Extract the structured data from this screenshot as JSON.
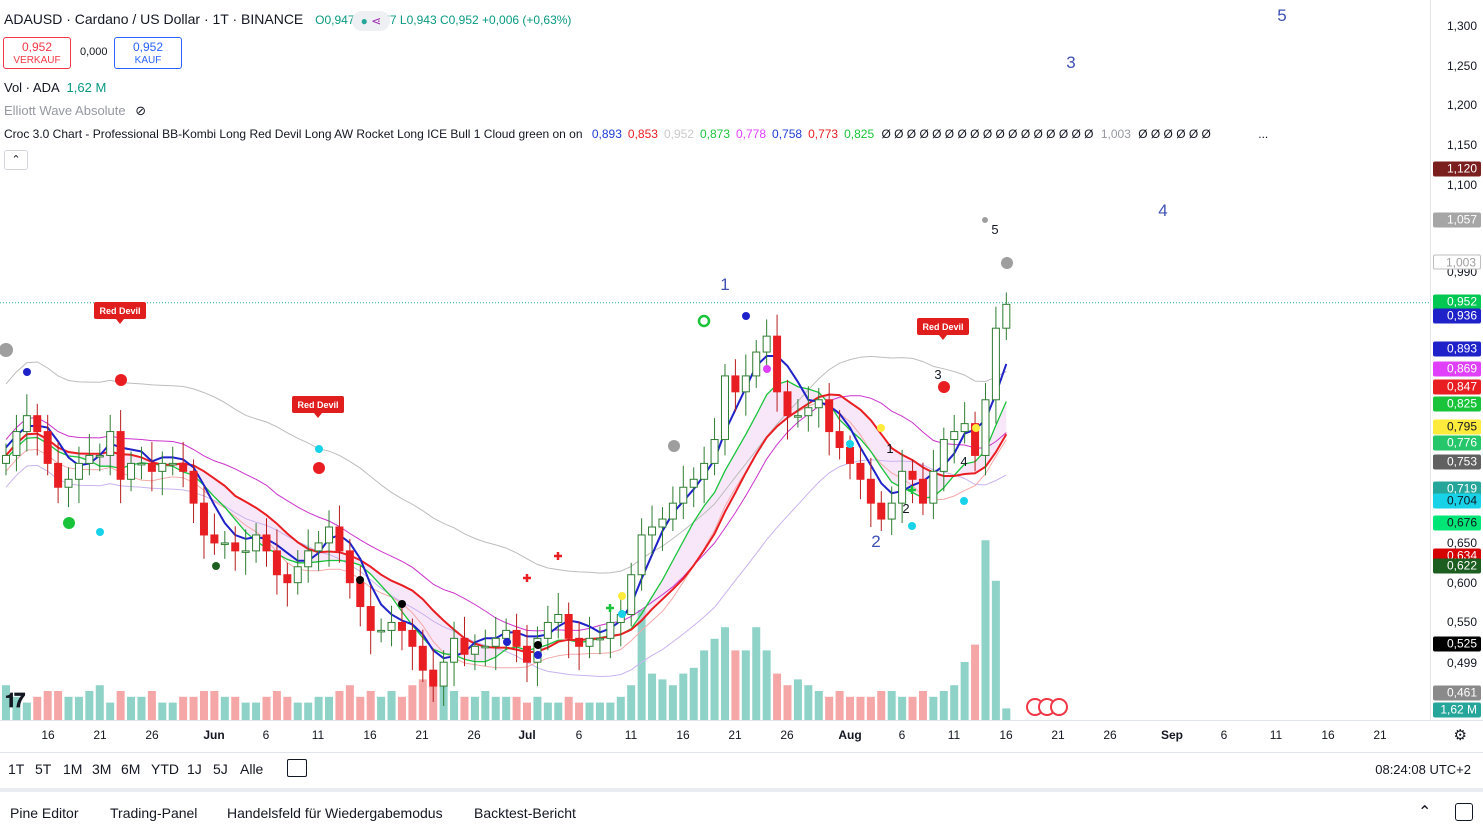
{
  "symbol": {
    "title": "ADAUSD · Cardano / US Dollar · 1T · BINANCE",
    "open": "O0,947",
    "high": "H0,977",
    "low": "L0,943",
    "close": "C0,952",
    "change": "+0,006 (+0,63%)"
  },
  "trade": {
    "sell_price": "0,952",
    "sell_label": "VERKAUF",
    "spread": "0,000",
    "buy_price": "0,952",
    "buy_label": "KAUF"
  },
  "indicators": {
    "volume": "Vol · ADA",
    "volume_value": "1,62 M",
    "elliott": "Elliott Wave Absolute",
    "croc_name": "Croc 3.0 Chart - Professional BB-Kombi Long Red Devil Long AW Rocket Long ICE Bull 1 Cloud green on on",
    "croc_values": [
      {
        "v": "0,893",
        "c": "#1e3cd6"
      },
      {
        "v": "0,853",
        "c": "#e91e23"
      },
      {
        "v": "0,952",
        "c": "#c9c9c9"
      },
      {
        "v": "0,873",
        "c": "#19c43b"
      },
      {
        "v": "0,778",
        "c": "#e040fb"
      },
      {
        "v": "0,758",
        "c": "#1e3cd6"
      },
      {
        "v": "0,773",
        "c": "#e91e23"
      },
      {
        "v": "0,825",
        "c": "#19c43b"
      }
    ],
    "croc_zeros_a": "Ø Ø Ø Ø Ø Ø Ø Ø Ø Ø Ø Ø Ø Ø Ø Ø Ø",
    "croc_1003": "1,003",
    "croc_zeros_b": "Ø Ø Ø Ø Ø Ø",
    "more": "..."
  },
  "price_axis": [
    "1,300",
    "1,250",
    "1,200",
    "1,150",
    "1,100",
    "0,990",
    "0,650",
    "0,600",
    "0,550",
    "0,499"
  ],
  "price_tags": [
    {
      "label": "1,120",
      "bg": "#7b1e1e"
    },
    {
      "label": "1,057",
      "bg": "#a6a6a6"
    },
    {
      "label": "1,003",
      "bg": "#ffffff",
      "fg": "#9e9e9e"
    },
    {
      "label": "0,952",
      "bg": "#00c853"
    },
    {
      "label": "0,936",
      "bg": "#1e22c8"
    },
    {
      "label": "0,893",
      "bg": "#1e22c8"
    },
    {
      "label": "0,869",
      "bg": "#e040fb"
    },
    {
      "label": "0,847",
      "bg": "#e91e23"
    },
    {
      "label": "0,825",
      "bg": "#19c43b"
    },
    {
      "label": "0,795",
      "bg": "#ffeb3b",
      "fg": "#131722"
    },
    {
      "label": "0,776",
      "bg": "#26c66a"
    },
    {
      "label": "0,753",
      "bg": "#616161"
    },
    {
      "label": "0,719",
      "bg": "#26a69a"
    },
    {
      "label": "0,704",
      "bg": "#18d3e8",
      "fg": "#131722"
    },
    {
      "label": "0,676",
      "bg": "#00e676",
      "fg": "#131722"
    },
    {
      "label": "0,634",
      "bg": "#d50000"
    },
    {
      "label": "0,622",
      "bg": "#1b5e20"
    },
    {
      "label": "0,525",
      "bg": "#000000"
    },
    {
      "label": "0,461",
      "bg": "#8a8a8a"
    },
    {
      "label": "1,62 M",
      "bg": "#26a69a"
    }
  ],
  "time_axis": [
    "16",
    "21",
    "26",
    "Jun",
    "6",
    "11",
    "16",
    "21",
    "26",
    "Jul",
    "6",
    "11",
    "16",
    "21",
    "26",
    "Aug",
    "6",
    "11",
    "16",
    "21",
    "26",
    "Sep",
    "6",
    "11",
    "16",
    "21"
  ],
  "wave_labels": [
    "1",
    "2",
    "3",
    "4",
    "5"
  ],
  "wave_small": [
    "1",
    "2",
    "3",
    "4",
    "5"
  ],
  "red_devil": "Red Devil",
  "range_buttons": [
    "1T",
    "5T",
    "1M",
    "3M",
    "6M",
    "YTD",
    "1J",
    "5J",
    "Alle"
  ],
  "clock": "08:24:08 UTC+2",
  "panels": [
    "Pine Editor",
    "Trading-Panel",
    "Handelsfeld für Wiedergabemodus",
    "Backtest-Bericht"
  ],
  "chart_data": {
    "type": "candlestick",
    "ylim": [
      0.46,
      1.32
    ],
    "x": [
      "May 11",
      "May 12",
      "May 13",
      "May 14",
      "May 15",
      "May 16",
      "May 17",
      "May 18",
      "May 19",
      "May 20",
      "May 21",
      "May 22",
      "May 23",
      "May 24",
      "May 25",
      "May 26",
      "May 27",
      "May 28",
      "May 29",
      "May 30",
      "May 31",
      "Jun 1",
      "Jun 2",
      "Jun 3",
      "Jun 4",
      "Jun 5",
      "Jun 6",
      "Jun 7",
      "Jun 8",
      "Jun 9",
      "Jun 10",
      "Jun 11",
      "Jun 12",
      "Jun 13",
      "Jun 14",
      "Jun 15",
      "Jun 16",
      "Jun 17",
      "Jun 18",
      "Jun 19",
      "Jun 20",
      "Jun 21",
      "Jun 22",
      "Jun 23",
      "Jun 24",
      "Jun 25",
      "Jun 26",
      "Jun 27",
      "Jun 28",
      "Jun 29",
      "Jun 30",
      "Jul 1",
      "Jul 2",
      "Jul 3",
      "Jul 4",
      "Jul 5",
      "Jul 6",
      "Jul 7",
      "Jul 8",
      "Jul 9",
      "Jul 10",
      "Jul 11",
      "Jul 12",
      "Jul 13",
      "Jul 14",
      "Jul 15",
      "Jul 16",
      "Jul 17",
      "Jul 18",
      "Jul 19",
      "Jul 20",
      "Jul 21",
      "Jul 22",
      "Jul 23",
      "Jul 24",
      "Jul 25",
      "Jul 26",
      "Jul 27",
      "Jul 28",
      "Jul 29",
      "Jul 30",
      "Jul 31",
      "Aug 1",
      "Aug 2",
      "Aug 3",
      "Aug 4",
      "Aug 5",
      "Aug 6",
      "Aug 7",
      "Aug 8",
      "Aug 9",
      "Aug 10",
      "Aug 11",
      "Aug 12",
      "Aug 13",
      "Aug 14",
      "Aug 15"
    ],
    "close": [
      0.76,
      0.79,
      0.81,
      0.79,
      0.75,
      0.72,
      0.73,
      0.75,
      0.76,
      0.76,
      0.79,
      0.73,
      0.75,
      0.75,
      0.74,
      0.75,
      0.75,
      0.74,
      0.7,
      0.66,
      0.65,
      0.65,
      0.64,
      0.64,
      0.66,
      0.64,
      0.61,
      0.6,
      0.62,
      0.64,
      0.65,
      0.67,
      0.64,
      0.6,
      0.57,
      0.54,
      0.54,
      0.55,
      0.54,
      0.52,
      0.49,
      0.47,
      0.5,
      0.53,
      0.51,
      0.52,
      0.52,
      0.53,
      0.54,
      0.52,
      0.5,
      0.53,
      0.55,
      0.56,
      0.53,
      0.52,
      0.53,
      0.53,
      0.55,
      0.56,
      0.61,
      0.66,
      0.67,
      0.68,
      0.7,
      0.72,
      0.73,
      0.75,
      0.78,
      0.86,
      0.84,
      0.86,
      0.89,
      0.91,
      0.84,
      0.81,
      0.81,
      0.82,
      0.83,
      0.79,
      0.77,
      0.75,
      0.73,
      0.7,
      0.68,
      0.7,
      0.74,
      0.73,
      0.7,
      0.74,
      0.78,
      0.79,
      0.8,
      0.76,
      0.83,
      0.92,
      0.95
    ],
    "volume_m": [
      6,
      4,
      3,
      4,
      5,
      5,
      4,
      4,
      5,
      6,
      3,
      5,
      4,
      4,
      5,
      3,
      3,
      4,
      4,
      5,
      5,
      4,
      4,
      3,
      3,
      4,
      5,
      4,
      3,
      3,
      4,
      4,
      5,
      6,
      4,
      5,
      4,
      5,
      4,
      6,
      7,
      8,
      6,
      5,
      4,
      4,
      5,
      4,
      4,
      4,
      3,
      4,
      3,
      3,
      4,
      3,
      3,
      3,
      3,
      4,
      6,
      19,
      8,
      7,
      6,
      8,
      9,
      12,
      14,
      16,
      12,
      12,
      16,
      12,
      8,
      6,
      7,
      6,
      5,
      4,
      5,
      4,
      4,
      4,
      5,
      5,
      4,
      4,
      5,
      4,
      5,
      6,
      10,
      13,
      31,
      24,
      2
    ]
  }
}
